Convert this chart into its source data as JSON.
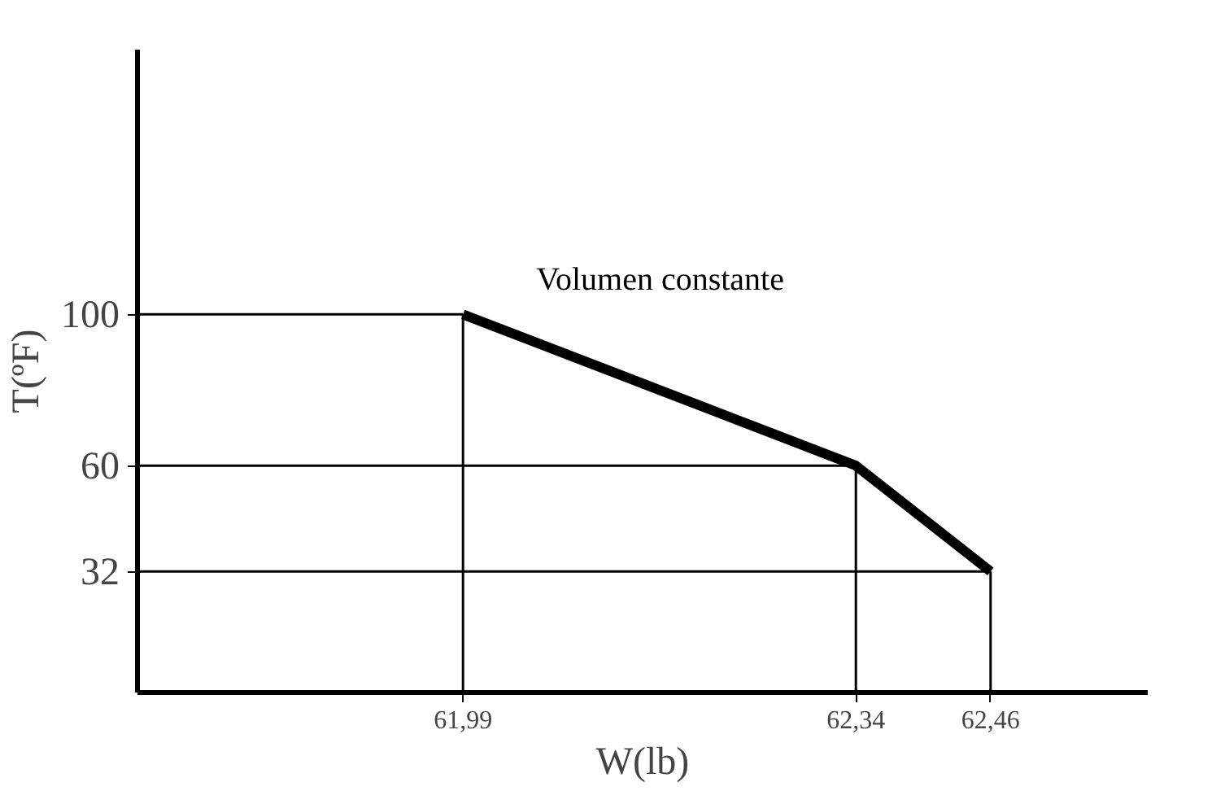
{
  "chart_data": {
    "type": "line",
    "xlabel": "W(lb)",
    "ylabel": "T(ºF)",
    "x": [
      61.99,
      62.34,
      62.46
    ],
    "series": [
      {
        "name": "Volumen constante",
        "color": "#000000",
        "values": [
          100,
          60,
          32
        ]
      }
    ],
    "xlim": [
      61.7,
      62.6
    ],
    "ylim": [
      0,
      170
    ],
    "xticks": [
      {
        "value": 61.99,
        "label": "61,99"
      },
      {
        "value": 62.34,
        "label": "62,34"
      },
      {
        "value": 62.46,
        "label": "62,46"
      }
    ],
    "yticks": [
      100,
      60,
      32
    ],
    "ref_lines": [
      {
        "axis": "y",
        "value": 100,
        "color": "#000000"
      },
      {
        "axis": "y",
        "value": 60,
        "color": "#000000"
      },
      {
        "axis": "y",
        "value": 32,
        "color": "#000000"
      },
      {
        "axis": "x",
        "value": 61.99,
        "color": "#000000"
      },
      {
        "axis": "x",
        "value": 62.34,
        "color": "#000000"
      },
      {
        "axis": "x",
        "value": 62.46,
        "color": "#000000"
      }
    ],
    "legend": false,
    "marker": "none",
    "line_style": "solid"
  }
}
